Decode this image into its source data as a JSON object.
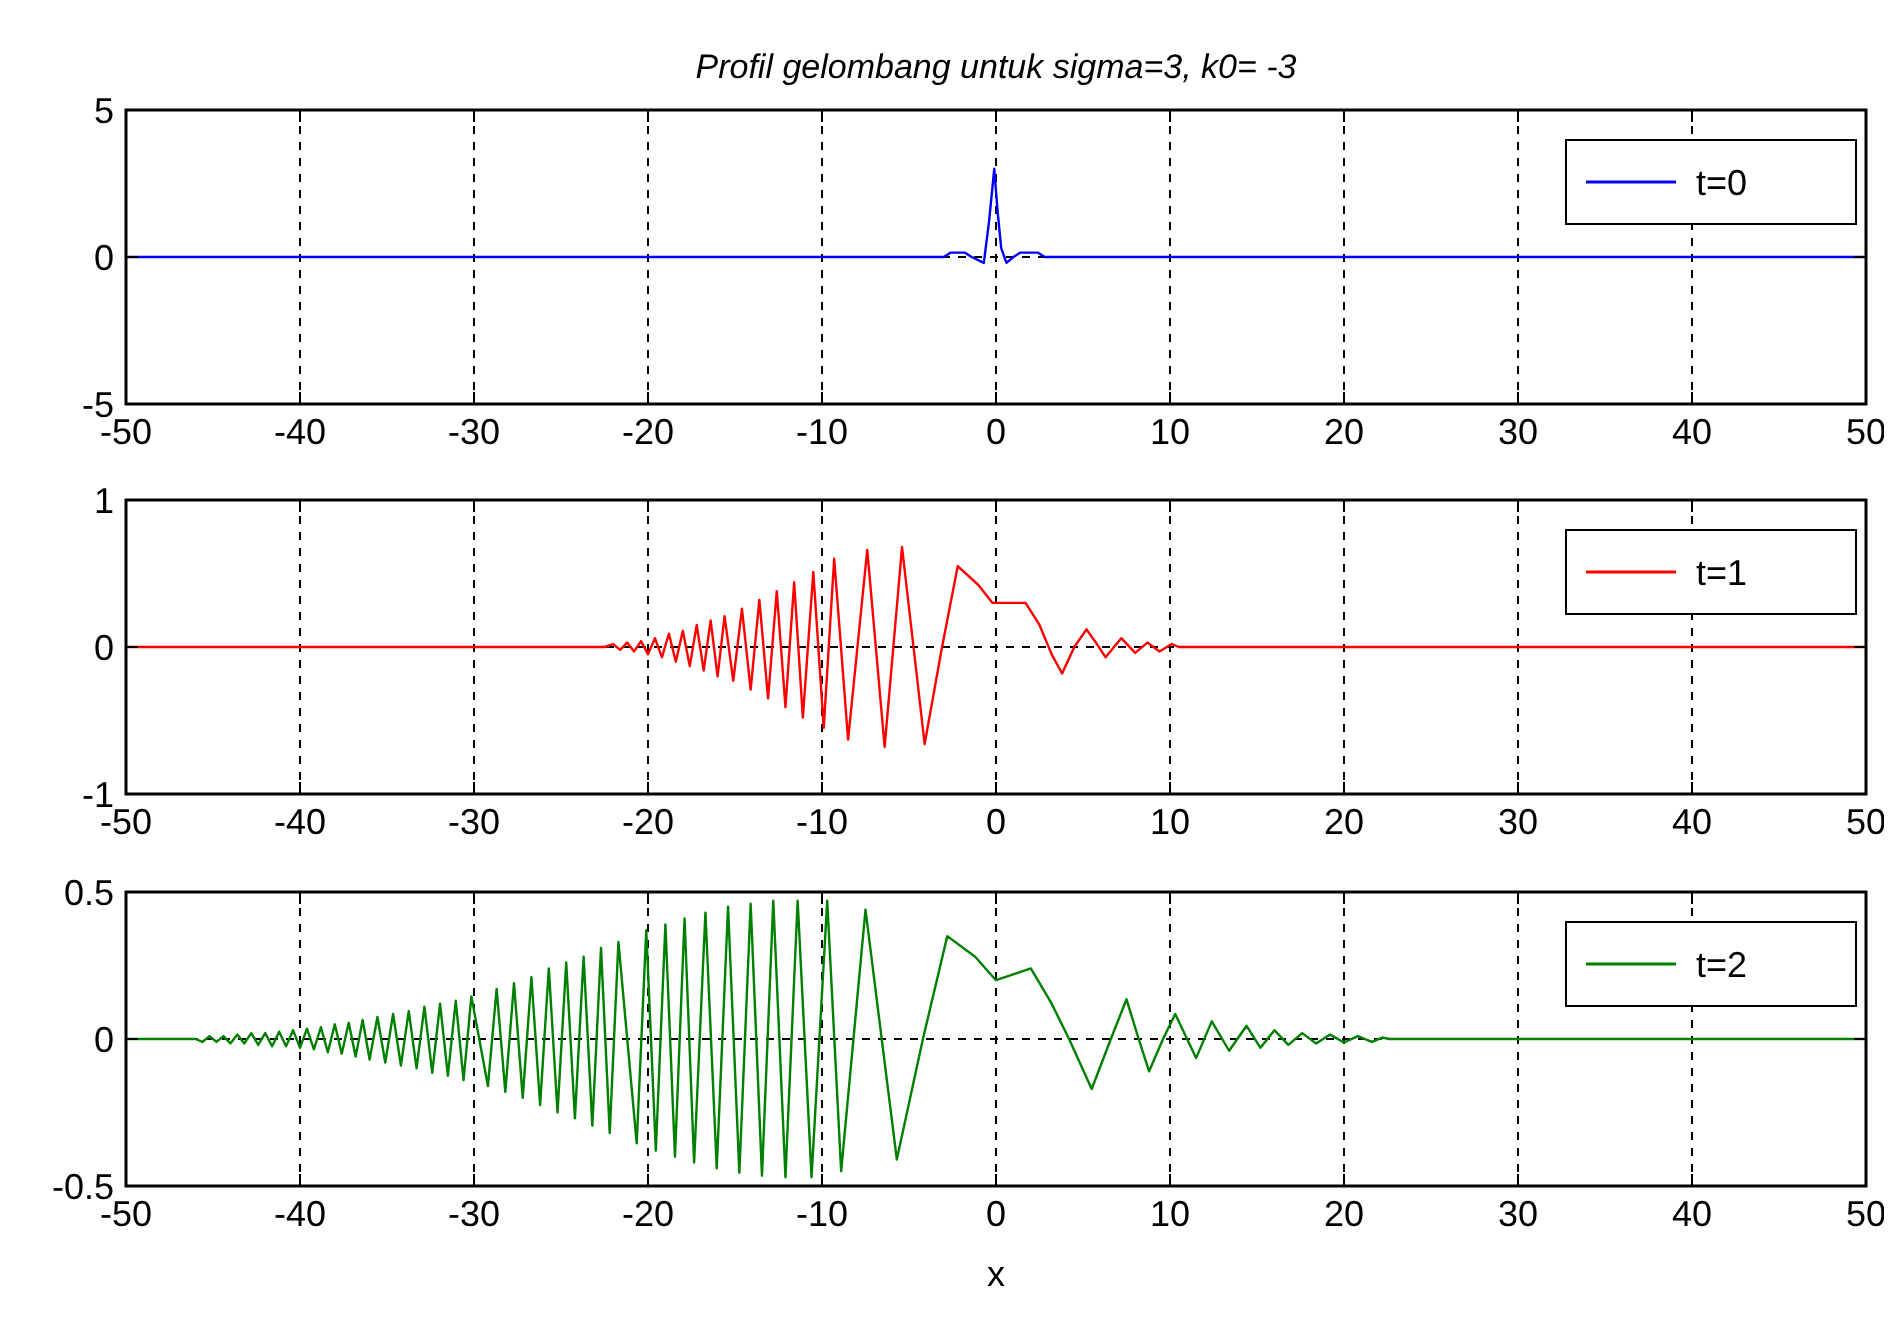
{
  "chart_data": [
    {
      "type": "line",
      "title": "Profil gelombang untuk sigma=3, k0= -3",
      "xlim": [
        -50,
        50
      ],
      "xticks": [
        -50,
        -40,
        -30,
        -20,
        -10,
        0,
        10,
        20,
        30,
        40,
        50
      ],
      "ylim": [
        -5,
        5
      ],
      "yticks": [
        -5,
        0,
        5
      ],
      "grid": true,
      "legend": "top right",
      "series": [
        {
          "name": "t=0",
          "color": "#0000ff",
          "x": [
            -50,
            -3,
            -2.6,
            -1.8,
            -1.4,
            -0.7,
            -0.4,
            -0.1,
            0.1,
            0.3,
            0.6,
            1,
            1.4,
            2.4,
            2.8,
            50
          ],
          "values": [
            0,
            0,
            0.15,
            0.15,
            0,
            -0.2,
            1.2,
            3,
            1.5,
            0.3,
            -0.2,
            0,
            0.15,
            0.15,
            0,
            0
          ]
        }
      ]
    },
    {
      "type": "line",
      "xlim": [
        -50,
        50
      ],
      "xticks": [
        -50,
        -40,
        -30,
        -20,
        -10,
        0,
        10,
        20,
        30,
        40,
        50
      ],
      "ylim": [
        -1,
        1
      ],
      "yticks": [
        -1,
        0,
        1
      ],
      "grid": true,
      "legend": "top right",
      "series": [
        {
          "name": "t=1",
          "color": "#ff0000",
          "x": [
            -50,
            -22.5,
            -22,
            -21.6,
            -21.2,
            -20.8,
            -20.4,
            -20,
            -19.6,
            -19.2,
            -18.8,
            -18.4,
            -18,
            -17.6,
            -17.2,
            -16.8,
            -16.4,
            -16,
            -15.6,
            -15.1,
            -14.6,
            -14.1,
            -13.6,
            -13.1,
            -12.6,
            -12.1,
            -11.6,
            -11.1,
            -10.5,
            -9.9,
            -9.3,
            -8.5,
            -7.4,
            -6.4,
            -5.4,
            -4.1,
            -3.1,
            -2.2,
            -1,
            -0.2,
            1.7,
            2.5,
            3.2,
            3.8,
            4.5,
            5.2,
            5.8,
            6.3,
            7.2,
            8,
            8.7,
            9.4,
            10.1,
            10.5,
            50
          ],
          "values": [
            0,
            0,
            0.02,
            -0.02,
            0.03,
            -0.03,
            0.04,
            -0.05,
            0.06,
            -0.07,
            0.09,
            -0.1,
            0.11,
            -0.13,
            0.15,
            -0.16,
            0.18,
            -0.2,
            0.21,
            -0.23,
            0.26,
            -0.29,
            0.32,
            -0.35,
            0.38,
            -0.41,
            0.44,
            -0.48,
            0.51,
            -0.55,
            0.6,
            -0.63,
            0.66,
            -0.68,
            0.68,
            -0.66,
            0,
            0.55,
            0.42,
            0.3,
            0.3,
            0.15,
            -0.05,
            -0.18,
            0,
            0.12,
            0.02,
            -0.07,
            0.06,
            -0.04,
            0.03,
            -0.03,
            0.02,
            0,
            0
          ]
        }
      ]
    },
    {
      "type": "line",
      "xlabel": "x",
      "xlim": [
        -50,
        50
      ],
      "xticks": [
        -50,
        -40,
        -30,
        -20,
        -10,
        0,
        10,
        20,
        30,
        40,
        50
      ],
      "ylim": [
        -0.5,
        0.5
      ],
      "yticks": [
        -0.5,
        0,
        0.5
      ],
      "grid": true,
      "legend": "top right",
      "series": [
        {
          "name": "t=2",
          "color": "#008000",
          "x": [
            -50,
            -46,
            -45.6,
            -45.2,
            -44.8,
            -44.4,
            -44,
            -43.6,
            -43.2,
            -42.8,
            -42.4,
            -42,
            -41.6,
            -41.2,
            -40.8,
            -40.4,
            -40,
            -39.6,
            -39.2,
            -38.8,
            -38.4,
            -38,
            -37.6,
            -37.2,
            -36.8,
            -36.4,
            -36,
            -35.55,
            -35.1,
            -34.65,
            -34.2,
            -33.75,
            -33.3,
            -32.85,
            -32.4,
            -31.95,
            -31.5,
            -31.05,
            -30.6,
            -30.15,
            -29.2,
            -28.7,
            -28.2,
            -27.7,
            -27.2,
            -26.7,
            -26.2,
            -25.7,
            -25.2,
            -24.7,
            -24.2,
            -23.7,
            -23.2,
            -22.7,
            -22.2,
            -21.7,
            -20.65,
            -20.1,
            -19.55,
            -19,
            -18.45,
            -17.9,
            -17.35,
            -16.7,
            -16.05,
            -15.4,
            -14.75,
            -14.1,
            -13.45,
            -12.8,
            -12.1,
            -11.4,
            -10.6,
            -9.7,
            -8.9,
            -7.5,
            -5.7,
            -4.2,
            -2.8,
            -1.2,
            0,
            2,
            3.2,
            4.2,
            5.5,
            6.6,
            7.5,
            8.2,
            8.8,
            9.6,
            10.3,
            11.5,
            12.4,
            13.4,
            14.4,
            15.2,
            16,
            16.8,
            17.6,
            18.4,
            19.2,
            20,
            20.8,
            21.6,
            22.2,
            22.6,
            50
          ],
          "values": [
            0,
            0,
            -0.01,
            0.01,
            -0.01,
            0.01,
            -0.015,
            0.015,
            -0.015,
            0.02,
            -0.02,
            0.02,
            -0.025,
            0.025,
            -0.025,
            0.03,
            -0.03,
            0.035,
            -0.035,
            0.04,
            -0.045,
            0.05,
            -0.05,
            0.055,
            -0.06,
            0.065,
            -0.07,
            0.075,
            -0.08,
            0.085,
            -0.09,
            0.095,
            -0.1,
            0.11,
            -0.115,
            0.12,
            -0.125,
            0.13,
            -0.14,
            0.145,
            -0.16,
            0.17,
            -0.18,
            0.19,
            -0.2,
            0.21,
            -0.225,
            0.24,
            -0.25,
            0.26,
            -0.27,
            0.28,
            -0.295,
            0.31,
            -0.32,
            0.33,
            -0.355,
            0.37,
            -0.38,
            0.39,
            -0.4,
            0.41,
            -0.42,
            0.43,
            -0.44,
            0.45,
            -0.455,
            0.46,
            -0.465,
            0.47,
            -0.47,
            0.47,
            -0.47,
            0.47,
            -0.45,
            0.44,
            -0.41,
            0,
            0.35,
            0.28,
            0.2,
            0.24,
            0.12,
            0,
            -0.17,
            0,
            0.135,
            0,
            -0.11,
            0,
            0.085,
            -0.065,
            0.06,
            -0.04,
            0.045,
            -0.03,
            0.03,
            -0.02,
            0.02,
            -0.015,
            0.015,
            -0.012,
            0.01,
            -0.01,
            0.005,
            0,
            0
          ]
        }
      ]
    }
  ]
}
